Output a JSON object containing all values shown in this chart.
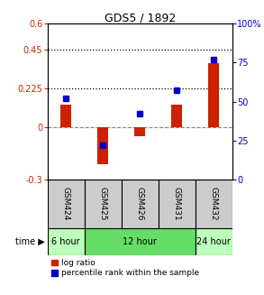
{
  "title": "GDS5 / 1892",
  "samples": [
    "GSM424",
    "GSM425",
    "GSM426",
    "GSM431",
    "GSM432"
  ],
  "log_ratios": [
    0.13,
    -0.21,
    -0.05,
    0.13,
    0.37
  ],
  "percentile_ranks": [
    52,
    22,
    42,
    57,
    77
  ],
  "bar_color": "#cc2200",
  "dot_color": "#0000cc",
  "ylim_left": [
    -0.3,
    0.6
  ],
  "ylim_right": [
    0,
    100
  ],
  "yticks_left": [
    -0.3,
    0,
    0.225,
    0.45,
    0.6
  ],
  "yticks_right": [
    0,
    25,
    50,
    75,
    100
  ],
  "ytick_labels_left": [
    "-0.3",
    "0",
    "0.225",
    "0.45",
    "0.6"
  ],
  "ytick_labels_right": [
    "0",
    "25",
    "50",
    "75",
    "100%"
  ],
  "hline_values": [
    0.225,
    0.45
  ],
  "zero_line_color": "#cc2200",
  "bg_color": "#ffffff",
  "legend_items": [
    "log ratio",
    "percentile rank within the sample"
  ],
  "time_groups": [
    {
      "label": "6 hour",
      "span": [
        0,
        1
      ],
      "color": "#bbffbb"
    },
    {
      "label": "12 hour",
      "span": [
        1,
        4
      ],
      "color": "#66dd66"
    },
    {
      "label": "24 hour",
      "span": [
        4,
        5
      ],
      "color": "#bbffbb"
    }
  ],
  "sample_box_color": "#cccccc",
  "bar_width": 0.3
}
